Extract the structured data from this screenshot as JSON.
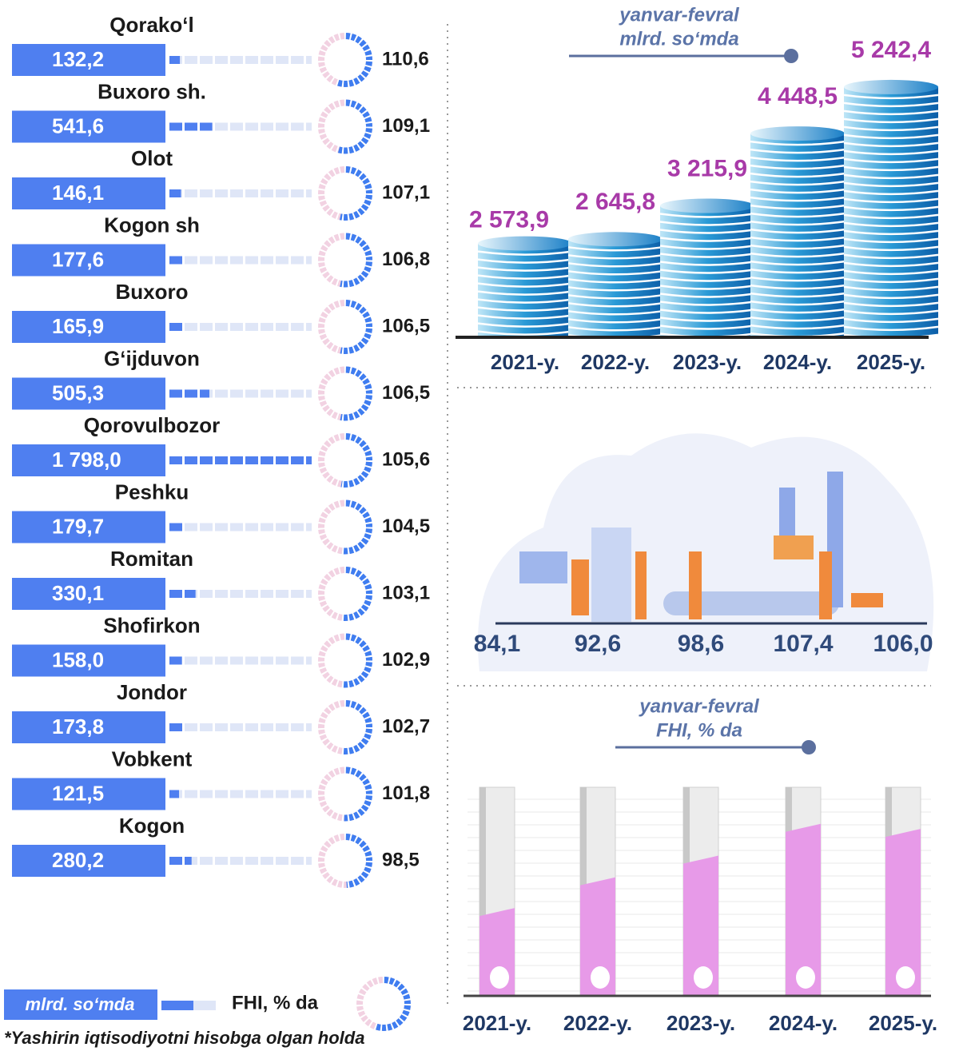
{
  "chart_data": [
    {
      "type": "district-list",
      "categories": [
        "Qorako‘l",
        "Buxoro  sh.",
        "Olot",
        "Kogon sh",
        "Buxoro",
        "G‘ijduvon",
        "Qorovulbozor",
        "Peshku",
        "Romitan",
        "Shofirkon",
        "Jondor",
        "Vobkent",
        "Kogon"
      ],
      "series": [
        {
          "name": "mlrd. so‘mda",
          "color": "#4f7ff0",
          "values": [
            132.2,
            541.6,
            146.1,
            177.6,
            165.9,
            505.3,
            1798.0,
            179.7,
            330.1,
            158.0,
            173.8,
            121.5,
            280.2
          ],
          "value_labels": [
            "132,2",
            "541,6",
            "146,1",
            "177,6",
            "165,9",
            "505,3",
            "1 798,0",
            "179,7",
            "330,1",
            "158,0",
            "173,8",
            "121,5",
            "280,2"
          ]
        },
        {
          "name": "FHI, % da",
          "color": "#3f7df0",
          "values": [
            110.6,
            109.1,
            107.1,
            106.8,
            106.5,
            106.5,
            105.6,
            104.5,
            103.1,
            102.9,
            102.7,
            101.8,
            98.5
          ],
          "value_labels": [
            "110,6",
            "109,1",
            "107,1",
            "106,8",
            "106,5",
            "106,5",
            "105,6",
            "104,5",
            "103,1",
            "102,9",
            "102,7",
            "101,8",
            "98,5"
          ]
        }
      ],
      "note": "*Yashirin iqtisodiyotni hisobga olgan holda"
    },
    {
      "type": "coins",
      "title": "yanvar-fevral",
      "subtitle": "mlrd. so‘mda",
      "categories": [
        "2021-y.",
        "2022-y.",
        "2023-y.",
        "2024-y.",
        "2025-y."
      ],
      "values": [
        2573.9,
        2645.8,
        3215.9,
        4448.5,
        5242.4
      ],
      "value_labels": [
        "2 573,9",
        "2 645,8",
        "3 215,9",
        "4 448,5",
        "5 242,4"
      ],
      "color": "#1a8fd0",
      "ylim": [
        1000,
        5500
      ]
    },
    {
      "type": "cylinders",
      "title": "yanvar-fevral",
      "subtitle": "FHI, % da",
      "categories": [
        "2021-y.",
        "2022-y.",
        "2023-y.",
        "2024-y.",
        "2025-y."
      ],
      "values": [
        84.1,
        92.6,
        98.6,
        107.4,
        106.0
      ],
      "value_labels": [
        "84,1",
        "92,6",
        "98,6",
        "107,4",
        "106,0"
      ],
      "color": "#e79ae8",
      "ylim": [
        60,
        112
      ]
    }
  ]
}
